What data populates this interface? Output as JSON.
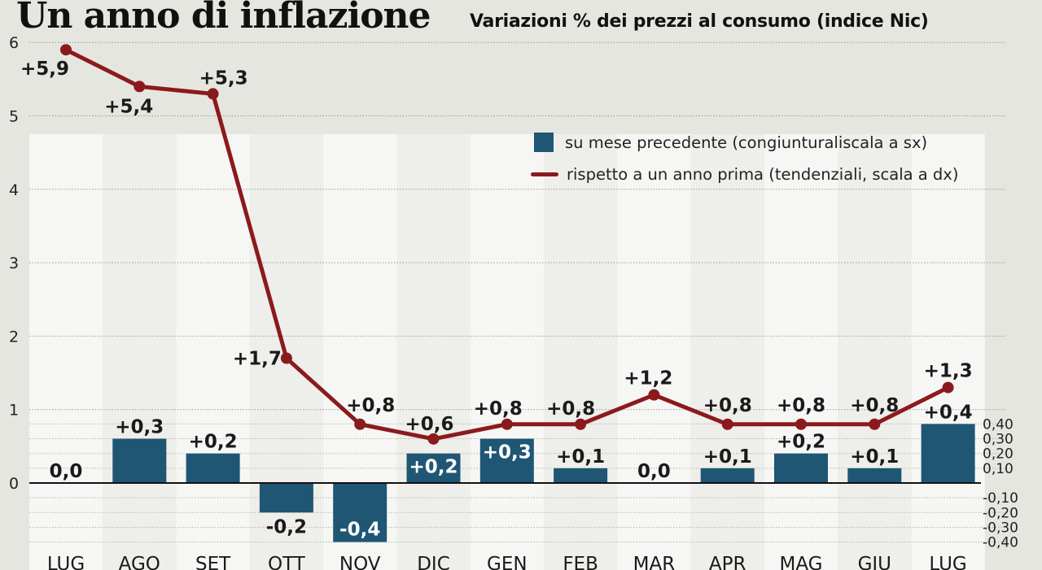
{
  "chart_data": {
    "type": "bar+line",
    "title": "Un anno di inflazione",
    "subtitle": "Variazioni % dei prezzi al consumo (indice Nic)",
    "categories": [
      "LUG",
      "AGO",
      "SET",
      "OTT",
      "NOV",
      "DIC",
      "GEN",
      "FEB",
      "MAR",
      "APR",
      "MAG",
      "GIU",
      "LUG"
    ],
    "series": [
      {
        "name": "su mese precedente (congiunturaliscala a sx)",
        "type": "bar",
        "axis": "right",
        "color": "#1f5674",
        "values": [
          0.0,
          0.3,
          0.2,
          -0.2,
          -0.4,
          0.2,
          0.3,
          0.1,
          0.0,
          0.1,
          0.2,
          0.1,
          0.4
        ],
        "labels": [
          "0,0",
          "+0,3",
          "+0,2",
          "-0,2",
          "-0,4",
          "+0,2",
          "+0,3",
          "+0,1",
          "0,0",
          "+0,1",
          "+0,2",
          "+0,1",
          "+0,4"
        ]
      },
      {
        "name": "rispetto a un anno prima (tendenziali, scala a dx)",
        "type": "line",
        "axis": "left",
        "color": "#8b1a1d",
        "values": [
          5.9,
          5.4,
          5.3,
          1.7,
          0.8,
          0.6,
          0.8,
          0.8,
          1.2,
          0.8,
          0.8,
          0.8,
          1.3
        ],
        "labels": [
          "+5,9",
          "+5,4",
          "+5,3",
          "+1,7",
          "+0,8",
          "+0,6",
          "+0,8",
          "+0,8",
          "+1,2",
          "+0,8",
          "+0,8",
          "+0,8",
          "+1,3"
        ]
      }
    ],
    "y_left": {
      "ticks": [
        "6",
        "5",
        "4",
        "3",
        "2",
        "1",
        "0"
      ],
      "ylim": [
        0,
        6
      ]
    },
    "y_right": {
      "ticks": [
        "0,40",
        "0,30",
        "0,20",
        "0,10",
        "-0,10",
        "-0,20",
        "-0,30",
        "-0,40"
      ],
      "ylim": [
        -0.4,
        0.4
      ]
    },
    "grid": true,
    "legend_position": "top-right"
  }
}
